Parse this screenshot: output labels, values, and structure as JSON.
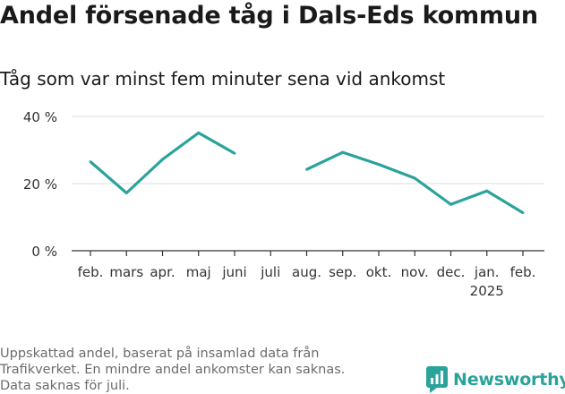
{
  "header": {
    "title": "Andel försenade tåg i Dals-Eds kommun",
    "subtitle": "Tåg som var minst fem minuter sena vid ankomst"
  },
  "footnote": {
    "lines": [
      "Uppskattad andel, baserat på insamlad data från",
      "Trafikverket. En mindre andel ankomster kan saknas.",
      "Data saknas för juli."
    ]
  },
  "brand": {
    "name": "Newsworthy",
    "icon": "newsworthy-logo-icon",
    "color": "#2aa39b"
  },
  "chart_data": {
    "type": "line",
    "categories": [
      "feb.",
      "mars",
      "apr.",
      "maj",
      "juni",
      "juli",
      "aug.",
      "sep.",
      "okt.",
      "nov.",
      "dec.",
      "jan.",
      "feb."
    ],
    "category_sublabels": [
      "",
      "",
      "",
      "",
      "",
      "",
      "",
      "",
      "",
      "",
      "",
      "2025",
      ""
    ],
    "series": [
      {
        "values": [
          26.5,
          17.2,
          27.2,
          35.1,
          29.0,
          null,
          24.2,
          29.3,
          25.7,
          21.6,
          13.8,
          17.8,
          11.3
        ],
        "color": "#2aa39b"
      }
    ],
    "yticks": [
      0,
      20,
      40
    ],
    "ytick_labels": [
      "0 %",
      "20 %",
      "40 %"
    ],
    "ylim": [
      0,
      40
    ],
    "grid": true,
    "xlabel": "",
    "ylabel": ""
  }
}
